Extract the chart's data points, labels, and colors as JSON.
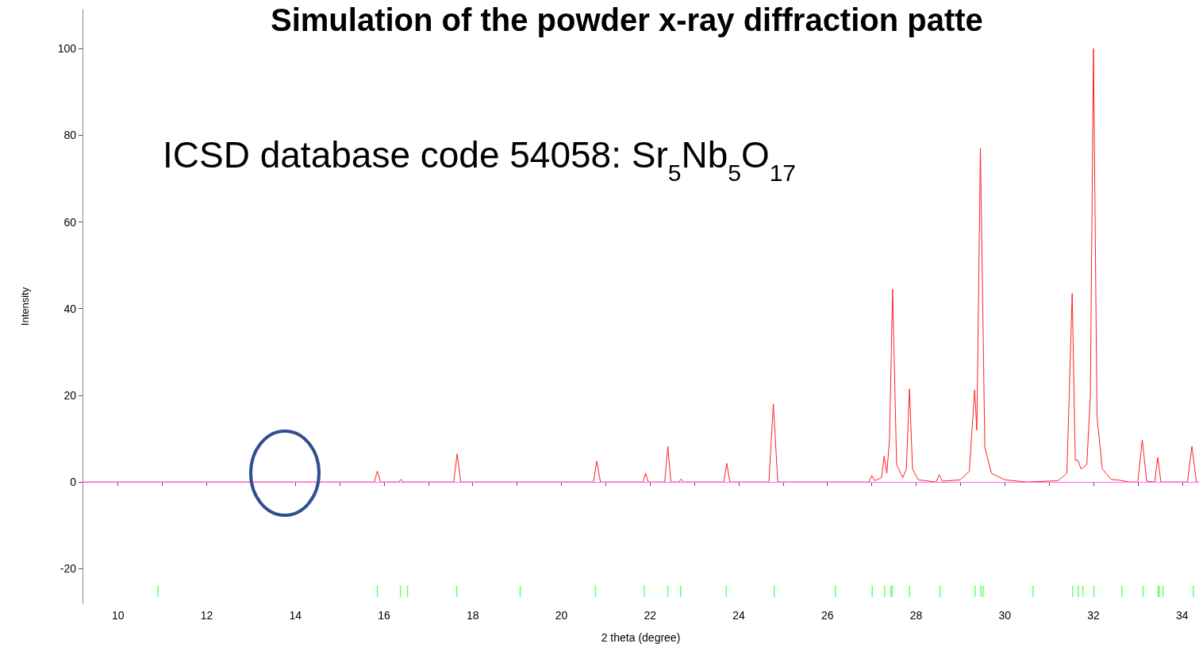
{
  "chart_data": {
    "type": "line",
    "title": "Simulation of the powder x-ray diffraction patte",
    "xlabel": "2 theta (degree)",
    "ylabel": "Intensity",
    "annotations": [
      "ICSD database code 54058: Sr$_{5}$Nb$_{5}$O$_{17}$"
    ],
    "xlim": [
      9.2,
      34.38
    ],
    "xticks": [
      10,
      12,
      14,
      16,
      18,
      20,
      22,
      24,
      26,
      28,
      30,
      32,
      34
    ],
    "ylim": [
      -28,
      109
    ],
    "yticks": [
      -20,
      0,
      20,
      40,
      60,
      80,
      100
    ],
    "grid": false,
    "marker": "none",
    "line_style": "solid",
    "ref_lines": [
      {
        "axis": "y",
        "value": 0,
        "color": "#ff66ff"
      }
    ],
    "series": [
      {
        "color": "#ff2020",
        "x": [
          9.2,
          15.78,
          15.85,
          15.92,
          16.33,
          16.38,
          16.43,
          17.57,
          17.65,
          17.73,
          20.72,
          20.8,
          20.88,
          21.84,
          21.9,
          21.96,
          22.33,
          22.4,
          22.47,
          22.65,
          22.7,
          22.75,
          23.66,
          23.73,
          23.8,
          24.68,
          24.78,
          24.88,
          26.94,
          27.0,
          27.06,
          27.22,
          27.28,
          27.34,
          27.4,
          27.47,
          27.56,
          27.7,
          27.78,
          27.85,
          27.92,
          28.05,
          28.45,
          28.52,
          28.59,
          29.0,
          29.2,
          29.32,
          29.37,
          29.45,
          29.55,
          29.7,
          30.0,
          30.5,
          31.2,
          31.4,
          31.52,
          31.59,
          31.65,
          31.72,
          31.85,
          31.93,
          32.0,
          32.08,
          32.2,
          32.4,
          32.6,
          32.8,
          33.0,
          33.1,
          33.2,
          33.38,
          33.45,
          33.52,
          34.12,
          34.22,
          34.32,
          34.38
        ],
        "values": [
          0,
          0,
          2.5,
          0,
          0,
          0.6,
          0,
          0,
          6.5,
          0,
          0,
          4.8,
          0,
          0,
          2,
          0,
          0,
          8.2,
          0,
          0,
          0.7,
          0,
          0,
          4.3,
          0,
          0,
          18,
          0,
          0,
          1.5,
          0.3,
          1,
          6,
          2,
          10,
          44.5,
          4,
          1,
          3,
          21.5,
          3,
          0.5,
          0,
          1.7,
          0.2,
          0.5,
          2.5,
          21.3,
          12,
          77,
          8,
          2,
          0.5,
          0,
          0.3,
          2,
          43.5,
          5,
          5,
          3,
          4,
          20,
          100,
          15,
          3,
          0.6,
          0.4,
          0,
          0,
          9.7,
          0.2,
          0,
          5.7,
          0,
          0,
          8.2,
          0,
          0
        ]
      },
      {
        "type": "bar",
        "color": "#66ff66",
        "x": [
          10.9,
          15.85,
          16.37,
          16.53,
          17.64,
          19.07,
          20.77,
          21.87,
          22.4,
          22.69,
          23.72,
          24.8,
          26.18,
          27.01,
          27.29,
          27.43,
          27.46,
          27.85,
          28.54,
          29.33,
          29.46,
          29.51,
          30.64,
          31.53,
          31.66,
          31.76,
          32.01,
          32.64,
          33.12,
          33.46,
          33.48,
          33.57,
          34.25
        ],
        "base": [
          -26.5,
          -26.5,
          -26.5,
          -26.5,
          -26.5,
          -26.5,
          -26.5,
          -26.5,
          -26.5,
          -26.5,
          -26.5,
          -26.5,
          -26.5,
          -26.5,
          -26.5,
          -26.5,
          -26.5,
          -26.5,
          -26.5,
          -26.5,
          -26.5,
          -26.5,
          -26.5,
          -26.5,
          -26.5,
          -26.5,
          -26.5,
          -26.5,
          -26.5,
          -26.5,
          -26.5,
          -26.5,
          -26.5
        ],
        "values": [
          2.6,
          2.6,
          2.6,
          2.6,
          2.6,
          2.6,
          2.6,
          2.6,
          2.6,
          2.6,
          2.6,
          2.6,
          2.6,
          2.6,
          2.6,
          2.6,
          2.6,
          2.6,
          2.6,
          2.6,
          2.6,
          2.6,
          2.6,
          2.6,
          2.6,
          2.6,
          2.6,
          2.6,
          2.6,
          2.6,
          2.6,
          2.6,
          2.6
        ]
      }
    ]
  }
}
